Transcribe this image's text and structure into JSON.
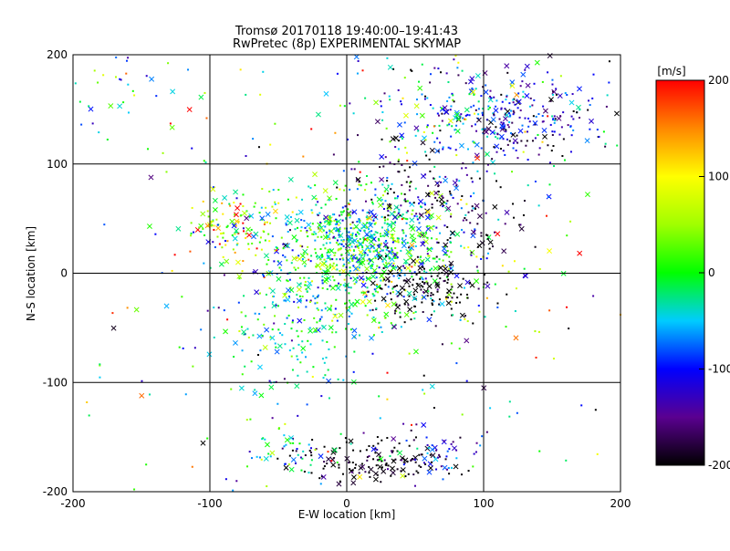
{
  "chart_data": {
    "type": "scatter",
    "title": "Tromsø 20170118 19:40:00–19:41:43",
    "subtitle": "RwPretec (8p) EXPERIMENTAL SKYMAP",
    "xlabel": "E-W location [km]",
    "ylabel": "N-S location [km]",
    "xlim": [
      -200,
      200
    ],
    "ylim": [
      -200,
      200
    ],
    "x_ticks": [
      "-200",
      "-100",
      "0",
      "100",
      "200"
    ],
    "y_ticks": [
      "-200",
      "-100",
      "0",
      "100",
      "200"
    ],
    "grid": true,
    "colorbar": {
      "label": "[m/s]",
      "range": [
        -200,
        200
      ],
      "ticks": [
        "-200",
        "-100",
        "0",
        "100",
        "200"
      ],
      "colormap": "rainbow: black (-200) → violet → blue (-100) → cyan → green (0) → yellow (100) → red (200)"
    },
    "markers": [
      "dot",
      "x"
    ],
    "clusters": [
      {
        "x": 15,
        "y": 35,
        "sx": 30,
        "sy": 22,
        "n": 420,
        "v": -50,
        "vs": 50
      },
      {
        "x": 20,
        "y": 10,
        "sx": 40,
        "sy": 30,
        "n": 330,
        "v": 0,
        "vs": 60
      },
      {
        "x": -5,
        "y": 10,
        "sx": 30,
        "sy": 25,
        "n": 150,
        "v": 10,
        "vs": 50
      },
      {
        "x": 60,
        "y": -15,
        "sx": 18,
        "sy": 15,
        "n": 140,
        "v": -200,
        "vs": 15
      },
      {
        "x": 20,
        "y": -170,
        "sx": 25,
        "sy": 10,
        "n": 130,
        "v": -200,
        "vs": 25
      },
      {
        "x": 60,
        "y": -165,
        "sx": 20,
        "sy": 12,
        "n": 60,
        "v": -130,
        "vs": 60
      },
      {
        "x": -45,
        "y": -165,
        "sx": 18,
        "sy": 10,
        "n": 50,
        "v": -60,
        "vs": 80
      },
      {
        "x": 120,
        "y": 140,
        "sx": 35,
        "sy": 20,
        "n": 260,
        "v": -110,
        "vs": 60
      },
      {
        "x": 80,
        "y": 150,
        "sx": 40,
        "sy": 35,
        "n": 150,
        "v": -60,
        "vs": 100
      },
      {
        "x": 50,
        "y": 80,
        "sx": 20,
        "sy": 20,
        "n": 80,
        "v": -180,
        "vs": 40
      },
      {
        "x": 100,
        "y": 40,
        "sx": 15,
        "sy": 25,
        "n": 60,
        "v": -190,
        "vs": 40
      },
      {
        "x": -85,
        "y": 45,
        "sx": 18,
        "sy": 18,
        "n": 120,
        "v": 60,
        "vs": 90
      },
      {
        "x": -35,
        "y": -55,
        "sx": 25,
        "sy": 25,
        "n": 150,
        "v": -40,
        "vs": 50
      },
      {
        "x": -170,
        "y": 170,
        "sx": 25,
        "sy": 20,
        "n": 40,
        "v": -30,
        "vs": 80
      },
      {
        "x": 0,
        "y": 0,
        "sx": 120,
        "sy": 120,
        "n": 350,
        "v": 0,
        "vs": 120
      }
    ]
  }
}
